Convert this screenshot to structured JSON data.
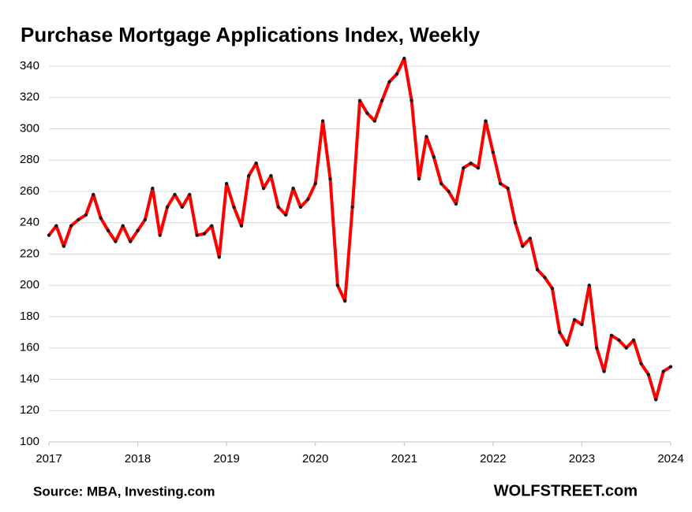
{
  "chart_data": {
    "type": "line",
    "title": "Purchase Mortgage Applications Index, Weekly",
    "source": "Source: MBA, Investing.com",
    "watermark": "WOLFSTREET.com",
    "x": [
      2017,
      2017.083,
      2017.167,
      2017.25,
      2017.333,
      2017.417,
      2017.5,
      2017.583,
      2017.667,
      2017.75,
      2017.833,
      2017.917,
      2018,
      2018.083,
      2018.167,
      2018.25,
      2018.333,
      2018.417,
      2018.5,
      2018.583,
      2018.667,
      2018.75,
      2018.833,
      2018.917,
      2019,
      2019.083,
      2019.167,
      2019.25,
      2019.333,
      2019.417,
      2019.5,
      2019.583,
      2019.667,
      2019.75,
      2019.833,
      2019.917,
      2020,
      2020.083,
      2020.167,
      2020.25,
      2020.333,
      2020.417,
      2020.5,
      2020.583,
      2020.667,
      2020.75,
      2020.833,
      2020.917,
      2021,
      2021.083,
      2021.167,
      2021.25,
      2021.333,
      2021.417,
      2021.5,
      2021.583,
      2021.667,
      2021.75,
      2021.833,
      2021.917,
      2022,
      2022.083,
      2022.167,
      2022.25,
      2022.333,
      2022.417,
      2022.5,
      2022.583,
      2022.667,
      2022.75,
      2022.833,
      2022.917,
      2023,
      2023.083,
      2023.167,
      2023.25,
      2023.333,
      2023.417,
      2023.5,
      2023.583,
      2023.667,
      2023.75,
      2023.833,
      2023.917,
      2024
    ],
    "series": [
      {
        "name": "Purchase Mortgage Applications Index",
        "color": "#ff0000",
        "marker_color": "#1a1a1a",
        "values": [
          232,
          238,
          225,
          238,
          242,
          245,
          258,
          243,
          235,
          228,
          238,
          228,
          235,
          242,
          262,
          232,
          250,
          258,
          250,
          258,
          232,
          233,
          238,
          218,
          265,
          250,
          238,
          270,
          278,
          262,
          270,
          250,
          245,
          262,
          250,
          255,
          265,
          305,
          268,
          200,
          190,
          250,
          318,
          310,
          305,
          318,
          330,
          335,
          345,
          318,
          268,
          295,
          282,
          265,
          260,
          252,
          275,
          278,
          275,
          305,
          285,
          265,
          262,
          240,
          225,
          230,
          210,
          205,
          198,
          170,
          162,
          178,
          175,
          200,
          160,
          145,
          168,
          165,
          160,
          165,
          150,
          143,
          127,
          145,
          148
        ]
      }
    ],
    "xlim": [
      2017,
      2024
    ],
    "xticks": [
      2017,
      2018,
      2019,
      2020,
      2021,
      2022,
      2023,
      2024
    ],
    "ylim": [
      100,
      340
    ],
    "yticks": [
      100,
      120,
      140,
      160,
      180,
      200,
      220,
      240,
      260,
      280,
      300,
      320,
      340
    ],
    "grid": true
  }
}
